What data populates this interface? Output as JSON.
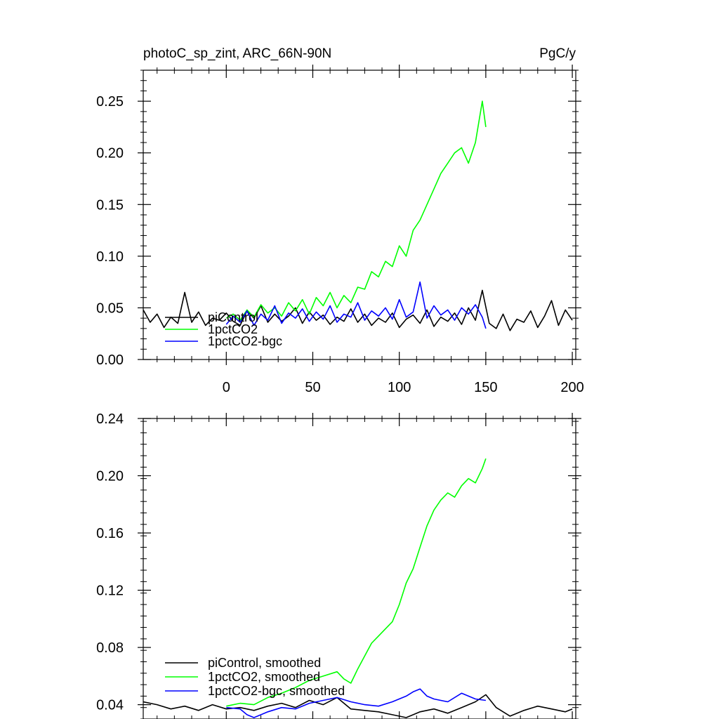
{
  "chart_data": [
    {
      "type": "line",
      "title": "photoC_sp_zint, ARC_66N-90N",
      "units": "PgC/y",
      "xlim": [
        -48,
        202
      ],
      "ylim": [
        0,
        0.28
      ],
      "x_ticks": [
        0,
        50,
        100,
        150,
        200
      ],
      "x_tick_labels": [
        "0",
        "50",
        "100",
        "150",
        "200"
      ],
      "y_ticks": [
        0,
        0.05,
        0.1,
        0.15,
        0.2,
        0.25
      ],
      "y_tick_labels": [
        "0.00",
        "0.05",
        "0.10",
        "0.15",
        "0.20",
        "0.25"
      ],
      "legend_position": "lower-left",
      "series": [
        {
          "name": "piControl",
          "color": "#000000",
          "x": [
            -48,
            -44,
            -40,
            -36,
            -32,
            -28,
            -24,
            -20,
            -16,
            -12,
            -8,
            -4,
            0,
            4,
            8,
            12,
            16,
            20,
            24,
            28,
            32,
            36,
            40,
            44,
            48,
            52,
            56,
            60,
            64,
            68,
            72,
            76,
            80,
            84,
            88,
            92,
            96,
            100,
            104,
            108,
            112,
            116,
            120,
            124,
            128,
            132,
            136,
            140,
            144,
            148,
            152,
            156,
            160,
            164,
            168,
            172,
            176,
            180,
            184,
            188,
            192,
            196,
            200
          ],
          "y": [
            0.048,
            0.036,
            0.044,
            0.031,
            0.041,
            0.035,
            0.065,
            0.036,
            0.046,
            0.033,
            0.04,
            0.038,
            0.045,
            0.037,
            0.033,
            0.047,
            0.04,
            0.052,
            0.036,
            0.044,
            0.037,
            0.042,
            0.05,
            0.035,
            0.046,
            0.038,
            0.043,
            0.034,
            0.041,
            0.037,
            0.049,
            0.036,
            0.044,
            0.033,
            0.04,
            0.036,
            0.045,
            0.031,
            0.039,
            0.043,
            0.035,
            0.048,
            0.032,
            0.041,
            0.037,
            0.045,
            0.034,
            0.05,
            0.038,
            0.067,
            0.035,
            0.03,
            0.044,
            0.028,
            0.039,
            0.036,
            0.047,
            0.031,
            0.042,
            0.057,
            0.033,
            0.048,
            0.038
          ]
        },
        {
          "name": "1pctCO2",
          "color": "#00ff00",
          "x": [
            0,
            4,
            8,
            12,
            16,
            20,
            24,
            28,
            32,
            36,
            40,
            44,
            48,
            52,
            56,
            60,
            64,
            68,
            72,
            76,
            80,
            84,
            88,
            92,
            96,
            100,
            104,
            108,
            112,
            116,
            120,
            124,
            128,
            132,
            136,
            140,
            144,
            148,
            150
          ],
          "y": [
            0.04,
            0.044,
            0.038,
            0.048,
            0.041,
            0.053,
            0.045,
            0.05,
            0.042,
            0.055,
            0.047,
            0.058,
            0.044,
            0.06,
            0.052,
            0.065,
            0.05,
            0.062,
            0.055,
            0.07,
            0.068,
            0.085,
            0.08,
            0.095,
            0.09,
            0.11,
            0.1,
            0.125,
            0.135,
            0.15,
            0.165,
            0.18,
            0.19,
            0.2,
            0.205,
            0.19,
            0.21,
            0.25,
            0.225
          ]
        },
        {
          "name": "1pctCO2-bgc",
          "color": "#0000ff",
          "x": [
            0,
            4,
            8,
            12,
            16,
            20,
            24,
            28,
            32,
            36,
            40,
            44,
            48,
            52,
            56,
            60,
            64,
            68,
            72,
            76,
            80,
            84,
            88,
            92,
            96,
            100,
            104,
            108,
            112,
            116,
            120,
            124,
            128,
            132,
            136,
            140,
            144,
            148,
            150
          ],
          "y": [
            0.034,
            0.042,
            0.036,
            0.047,
            0.033,
            0.044,
            0.038,
            0.052,
            0.035,
            0.045,
            0.04,
            0.049,
            0.037,
            0.046,
            0.039,
            0.052,
            0.036,
            0.044,
            0.041,
            0.055,
            0.038,
            0.047,
            0.042,
            0.05,
            0.039,
            0.058,
            0.041,
            0.046,
            0.075,
            0.04,
            0.052,
            0.043,
            0.048,
            0.038,
            0.05,
            0.044,
            0.053,
            0.041,
            0.03
          ]
        }
      ]
    },
    {
      "type": "line",
      "xlim": [
        -48,
        202
      ],
      "ylim": [
        0.03,
        0.24
      ],
      "x_ticks": [
        0,
        50,
        100,
        150,
        200
      ],
      "y_ticks": [
        0.04,
        0.08,
        0.12,
        0.16,
        0.2,
        0.24
      ],
      "y_tick_labels": [
        "0.04",
        "0.08",
        "0.12",
        "0.16",
        "0.20",
        "0.24"
      ],
      "legend_position": "lower-left",
      "series": [
        {
          "name": "piControl, smoothed",
          "color": "#000000",
          "x": [
            -48,
            -40,
            -32,
            -24,
            -16,
            -8,
            0,
            8,
            16,
            24,
            32,
            40,
            48,
            56,
            64,
            72,
            80,
            88,
            96,
            104,
            112,
            120,
            128,
            136,
            144,
            150,
            156,
            164,
            172,
            180,
            188,
            196,
            200
          ],
          "y": [
            0.042,
            0.04,
            0.037,
            0.039,
            0.036,
            0.04,
            0.037,
            0.038,
            0.036,
            0.039,
            0.041,
            0.038,
            0.043,
            0.04,
            0.045,
            0.037,
            0.036,
            0.035,
            0.033,
            0.031,
            0.035,
            0.037,
            0.034,
            0.038,
            0.042,
            0.047,
            0.038,
            0.032,
            0.036,
            0.039,
            0.037,
            0.035,
            0.037
          ]
        },
        {
          "name": "1pctCO2, smoothed",
          "color": "#00ff00",
          "x": [
            0,
            8,
            16,
            24,
            32,
            40,
            48,
            56,
            64,
            68,
            72,
            76,
            80,
            84,
            88,
            92,
            96,
            100,
            104,
            108,
            112,
            116,
            120,
            124,
            128,
            132,
            136,
            140,
            144,
            148,
            150
          ],
          "y": [
            0.039,
            0.041,
            0.04,
            0.045,
            0.048,
            0.052,
            0.057,
            0.06,
            0.063,
            0.058,
            0.055,
            0.065,
            0.074,
            0.083,
            0.088,
            0.093,
            0.098,
            0.11,
            0.125,
            0.135,
            0.15,
            0.165,
            0.176,
            0.183,
            0.188,
            0.185,
            0.193,
            0.198,
            0.195,
            0.205,
            0.212
          ]
        },
        {
          "name": "1pctCO2-bgc, smoothed",
          "color": "#0000ff",
          "x": [
            0,
            8,
            12,
            16,
            24,
            32,
            40,
            48,
            56,
            64,
            72,
            80,
            88,
            96,
            104,
            108,
            112,
            116,
            120,
            128,
            136,
            144,
            150
          ],
          "y": [
            0.038,
            0.037,
            0.033,
            0.031,
            0.035,
            0.038,
            0.037,
            0.041,
            0.043,
            0.045,
            0.042,
            0.04,
            0.039,
            0.042,
            0.046,
            0.049,
            0.051,
            0.046,
            0.044,
            0.042,
            0.048,
            0.044,
            0.043
          ]
        }
      ]
    }
  ]
}
